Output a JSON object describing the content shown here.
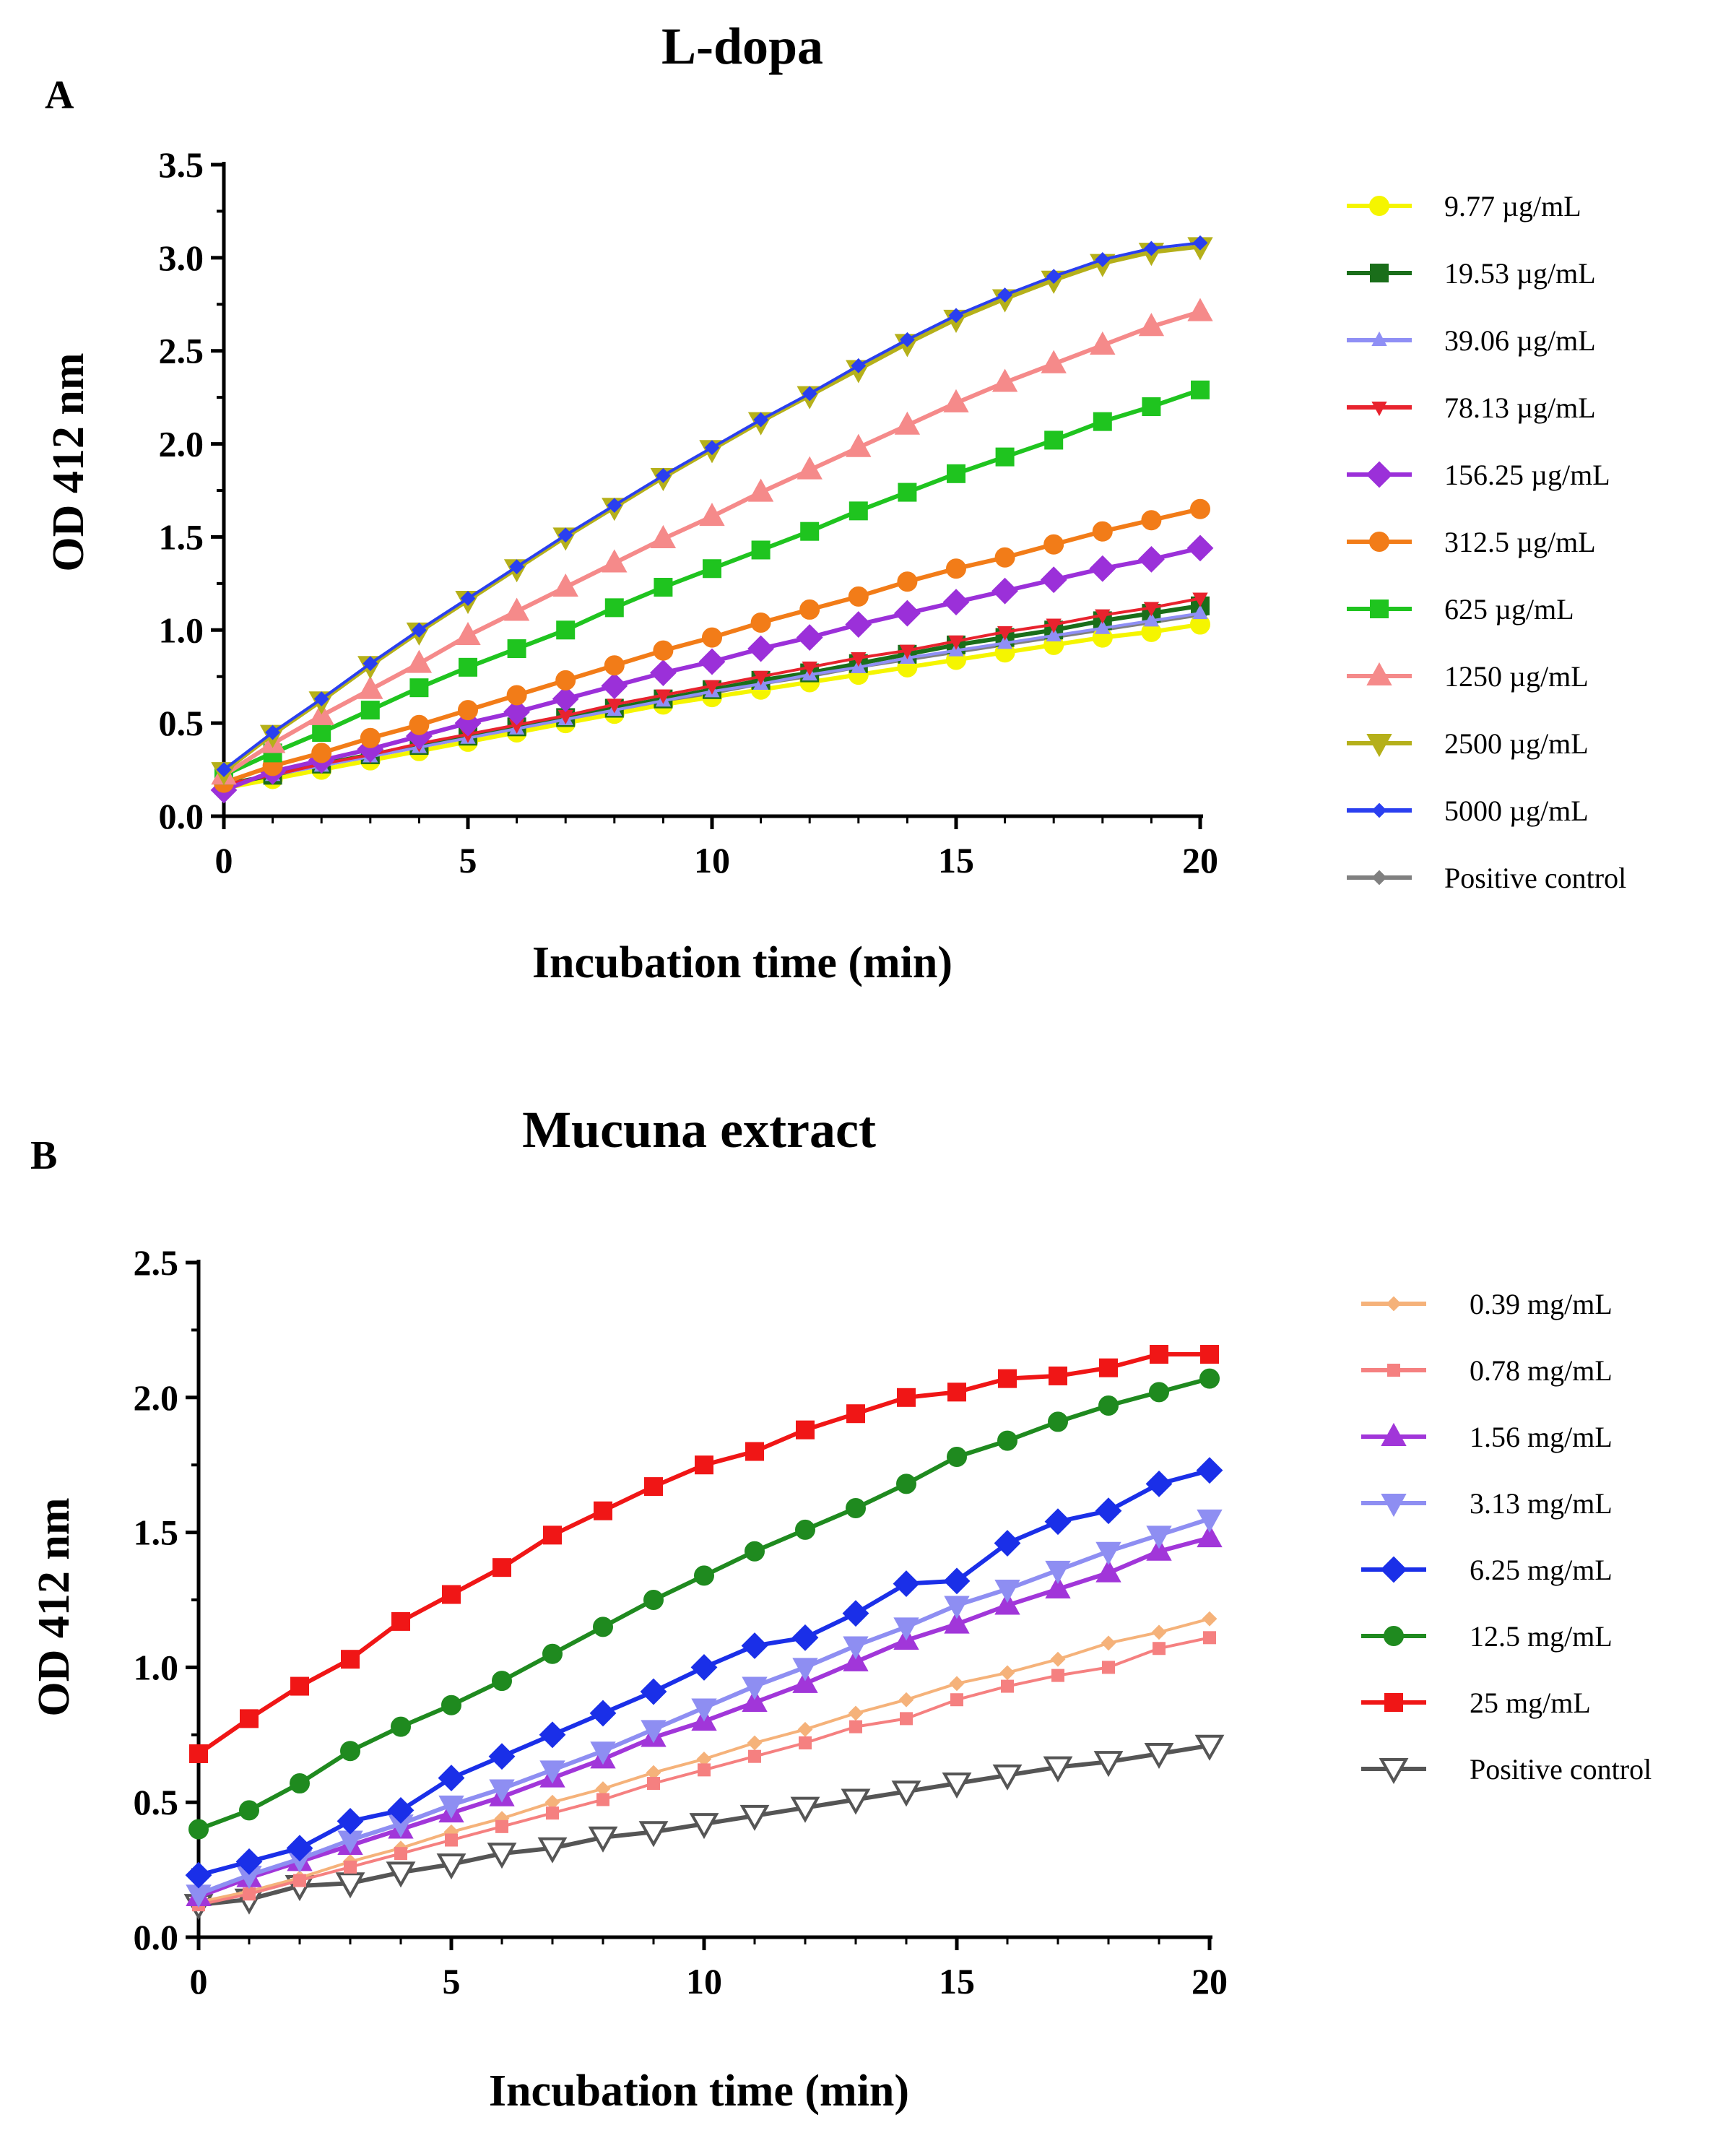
{
  "chart_data": [
    {
      "type": "line",
      "panel": "A",
      "title": "L-dopa",
      "xlabel": "Incubation time (min)",
      "ylabel": "OD 412 nm",
      "xlim": [
        0,
        20
      ],
      "ylim": [
        0,
        3.5
      ],
      "xticks": [
        "0",
        "5",
        "10",
        "15",
        "20"
      ],
      "yticks": [
        "0.0",
        "0.5",
        "1.0",
        "1.5",
        "2.0",
        "2.5",
        "3.0",
        "3.5"
      ],
      "x": [
        0,
        1,
        2,
        3,
        4,
        5,
        6,
        7,
        8,
        9,
        10,
        11,
        12,
        13,
        14,
        15,
        16,
        17,
        18,
        19,
        20
      ],
      "legend_position": "right",
      "series": [
        {
          "name": "Positive control",
          "color": "#808080",
          "marker": "diamond-small",
          "values": [
            0.15,
            0.2,
            0.25,
            0.3,
            0.35,
            0.4,
            0.46,
            0.51,
            0.56,
            0.61,
            0.66,
            0.71,
            0.75,
            0.8,
            0.84,
            0.88,
            0.92,
            0.96,
            1.0,
            1.04,
            1.08
          ]
        },
        {
          "name": "9.77 µg/mL",
          "color": "#f5f500",
          "marker": "circle",
          "values": [
            0.15,
            0.2,
            0.25,
            0.3,
            0.35,
            0.4,
            0.45,
            0.5,
            0.55,
            0.6,
            0.64,
            0.68,
            0.72,
            0.76,
            0.8,
            0.84,
            0.88,
            0.92,
            0.96,
            0.99,
            1.03
          ]
        },
        {
          "name": "19.53 µg/mL",
          "color": "#1a6e1a",
          "marker": "square",
          "values": [
            0.17,
            0.22,
            0.28,
            0.33,
            0.38,
            0.43,
            0.48,
            0.53,
            0.58,
            0.63,
            0.68,
            0.73,
            0.77,
            0.82,
            0.87,
            0.92,
            0.96,
            1.0,
            1.05,
            1.09,
            1.13
          ]
        },
        {
          "name": "39.06 µg/mL",
          "color": "#8f8ff5",
          "marker": "triangle-small",
          "values": [
            0.17,
            0.22,
            0.27,
            0.32,
            0.37,
            0.42,
            0.47,
            0.52,
            0.57,
            0.62,
            0.67,
            0.71,
            0.76,
            0.8,
            0.85,
            0.89,
            0.93,
            0.97,
            1.01,
            1.05,
            1.09
          ]
        },
        {
          "name": "78.13 µg/mL",
          "color": "#e8232e",
          "marker": "triangle-down-small",
          "values": [
            0.17,
            0.22,
            0.28,
            0.33,
            0.39,
            0.44,
            0.49,
            0.54,
            0.6,
            0.65,
            0.7,
            0.75,
            0.8,
            0.85,
            0.89,
            0.94,
            0.99,
            1.03,
            1.08,
            1.12,
            1.17
          ]
        },
        {
          "name": "156.25 µg/mL",
          "color": "#9b30d9",
          "marker": "diamond",
          "values": [
            0.14,
            0.24,
            0.3,
            0.36,
            0.43,
            0.5,
            0.56,
            0.63,
            0.7,
            0.77,
            0.83,
            0.9,
            0.96,
            1.03,
            1.09,
            1.15,
            1.21,
            1.27,
            1.33,
            1.38,
            1.44
          ]
        },
        {
          "name": "312.5 µg/mL",
          "color": "#f27c18",
          "marker": "circle",
          "values": [
            0.18,
            0.27,
            0.34,
            0.42,
            0.49,
            0.57,
            0.65,
            0.73,
            0.81,
            0.89,
            0.96,
            1.04,
            1.11,
            1.18,
            1.26,
            1.33,
            1.39,
            1.46,
            1.53,
            1.59,
            1.65
          ]
        },
        {
          "name": "625 µg/mL",
          "color": "#1fc41f",
          "marker": "square",
          "values": [
            0.22,
            0.34,
            0.45,
            0.57,
            0.69,
            0.8,
            0.9,
            1.0,
            1.12,
            1.23,
            1.33,
            1.43,
            1.53,
            1.64,
            1.74,
            1.84,
            1.93,
            2.02,
            2.12,
            2.2,
            2.29
          ]
        },
        {
          "name": "1250 µg/mL",
          "color": "#f58a8a",
          "marker": "triangle",
          "values": [
            0.22,
            0.39,
            0.54,
            0.68,
            0.82,
            0.97,
            1.1,
            1.23,
            1.36,
            1.49,
            1.61,
            1.74,
            1.86,
            1.98,
            2.1,
            2.22,
            2.33,
            2.43,
            2.53,
            2.63,
            2.71
          ]
        },
        {
          "name": "2500 µg/mL",
          "color": "#b5b01a",
          "marker": "triangle-down",
          "values": [
            0.24,
            0.44,
            0.62,
            0.81,
            0.99,
            1.16,
            1.33,
            1.5,
            1.66,
            1.82,
            1.97,
            2.12,
            2.26,
            2.4,
            2.54,
            2.67,
            2.78,
            2.88,
            2.97,
            3.03,
            3.06
          ]
        },
        {
          "name": "5000 µg/mL",
          "color": "#2a3ff0",
          "marker": "diamond-small",
          "values": [
            0.25,
            0.45,
            0.63,
            0.82,
            1.0,
            1.17,
            1.34,
            1.51,
            1.67,
            1.83,
            1.98,
            2.13,
            2.27,
            2.42,
            2.56,
            2.69,
            2.8,
            2.9,
            2.99,
            3.05,
            3.08
          ]
        }
      ],
      "legend_order": [
        "9.77 µg/mL",
        "19.53 µg/mL",
        "39.06 µg/mL",
        "78.13 µg/mL",
        "156.25 µg/mL",
        "312.5 µg/mL",
        "625 µg/mL",
        "1250 µg/mL",
        "2500 µg/mL",
        "5000 µg/mL",
        "Positive control"
      ]
    },
    {
      "type": "line",
      "panel": "B",
      "title": "Mucuna extract",
      "xlabel": "Incubation time (min)",
      "ylabel": "OD 412 nm",
      "xlim": [
        0,
        20
      ],
      "ylim": [
        0,
        2.5
      ],
      "xticks": [
        "0",
        "5",
        "10",
        "15",
        "20"
      ],
      "yticks": [
        "0.0",
        "0.5",
        "1.0",
        "1.5",
        "2.0",
        "2.5"
      ],
      "x": [
        0,
        1,
        2,
        3,
        4,
        5,
        6,
        7,
        8,
        9,
        10,
        11,
        12,
        13,
        14,
        15,
        16,
        17,
        18,
        19,
        20
      ],
      "legend_position": "right",
      "series": [
        {
          "name": "Positive control",
          "color": "#555555",
          "marker": "triangle-down-open",
          "values": [
            0.12,
            0.14,
            0.19,
            0.2,
            0.24,
            0.27,
            0.31,
            0.33,
            0.37,
            0.39,
            0.42,
            0.45,
            0.48,
            0.51,
            0.54,
            0.57,
            0.6,
            0.63,
            0.65,
            0.68,
            0.71
          ]
        },
        {
          "name": "0.39 mg/mL",
          "color": "#f5b27a",
          "marker": "diamond-small",
          "values": [
            0.13,
            0.17,
            0.22,
            0.28,
            0.33,
            0.39,
            0.44,
            0.5,
            0.55,
            0.61,
            0.66,
            0.72,
            0.77,
            0.83,
            0.88,
            0.94,
            0.98,
            1.03,
            1.09,
            1.13,
            1.18
          ]
        },
        {
          "name": "0.78 mg/mL",
          "color": "#f58080",
          "marker": "square-small",
          "values": [
            0.12,
            0.16,
            0.21,
            0.26,
            0.31,
            0.36,
            0.41,
            0.46,
            0.51,
            0.57,
            0.62,
            0.67,
            0.72,
            0.78,
            0.81,
            0.88,
            0.93,
            0.97,
            1.0,
            1.07,
            1.11
          ]
        },
        {
          "name": "1.56 mg/mL",
          "color": "#a136d9",
          "marker": "triangle",
          "values": [
            0.15,
            0.22,
            0.28,
            0.34,
            0.4,
            0.46,
            0.52,
            0.59,
            0.66,
            0.74,
            0.8,
            0.87,
            0.94,
            1.02,
            1.1,
            1.16,
            1.23,
            1.29,
            1.35,
            1.43,
            1.48
          ]
        },
        {
          "name": "3.13 mg/mL",
          "color": "#8e8ef2",
          "marker": "triangle-down",
          "values": [
            0.16,
            0.23,
            0.29,
            0.36,
            0.42,
            0.49,
            0.55,
            0.62,
            0.69,
            0.77,
            0.85,
            0.93,
            1.0,
            1.08,
            1.15,
            1.23,
            1.29,
            1.36,
            1.43,
            1.49,
            1.55
          ]
        },
        {
          "name": "6.25 mg/mL",
          "color": "#1a2fe8",
          "marker": "diamond",
          "values": [
            0.23,
            0.28,
            0.33,
            0.43,
            0.47,
            0.59,
            0.67,
            0.75,
            0.83,
            0.91,
            1.0,
            1.08,
            1.11,
            1.2,
            1.31,
            1.32,
            1.46,
            1.54,
            1.58,
            1.68,
            1.73
          ]
        },
        {
          "name": "12.5 mg/mL",
          "color": "#1f8a1f",
          "marker": "circle",
          "values": [
            0.4,
            0.47,
            0.57,
            0.69,
            0.78,
            0.86,
            0.95,
            1.05,
            1.15,
            1.25,
            1.34,
            1.43,
            1.51,
            1.59,
            1.68,
            1.78,
            1.84,
            1.91,
            1.97,
            2.02,
            2.07
          ]
        },
        {
          "name": "25 mg/mL",
          "color": "#f01616",
          "marker": "square",
          "values": [
            0.68,
            0.81,
            0.93,
            1.03,
            1.17,
            1.27,
            1.37,
            1.49,
            1.58,
            1.67,
            1.75,
            1.8,
            1.88,
            1.94,
            2.0,
            2.02,
            2.07,
            2.08,
            2.11,
            2.16,
            2.16
          ]
        }
      ],
      "legend_order": [
        "0.39 mg/mL",
        "0.78 mg/mL",
        "1.56 mg/mL",
        "3.13 mg/mL",
        "6.25 mg/mL",
        "12.5 mg/mL",
        "25 mg/mL",
        "Positive control"
      ]
    }
  ]
}
